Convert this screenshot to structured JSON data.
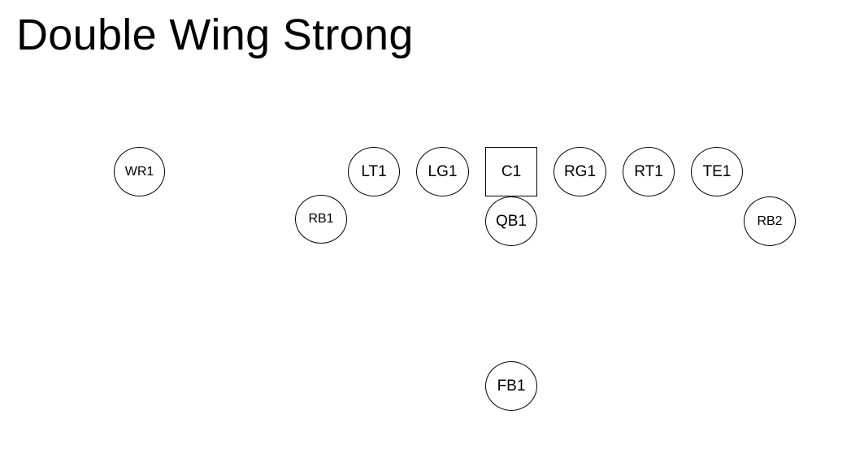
{
  "title": "Double Wing Strong",
  "players": {
    "wr1": "WR1",
    "lt1": "LT1",
    "lg1": "LG1",
    "c1": "C1",
    "rg1": "RG1",
    "rt1": "RT1",
    "te1": "TE1",
    "rb1": "RB1",
    "qb1": "QB1",
    "rb2": "RB2",
    "fb1": "FB1"
  }
}
